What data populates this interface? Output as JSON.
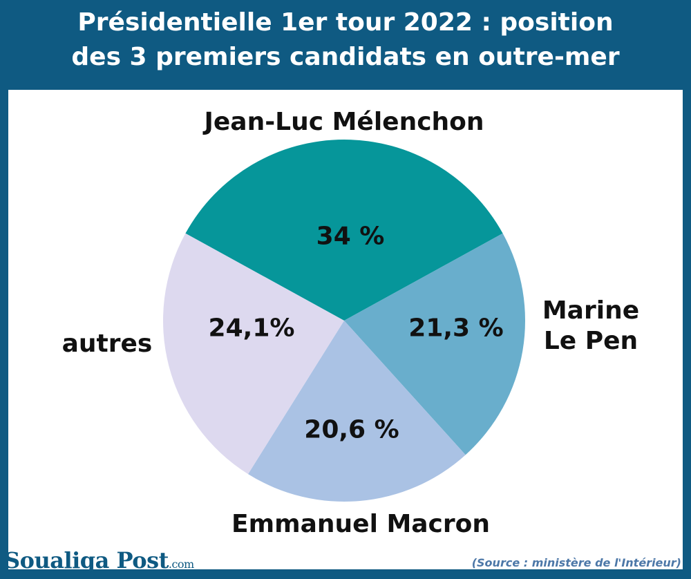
{
  "title_line1": "Présidentielle 1er tour 2022 : position",
  "title_line2": "des 3 premiers candidats en outre-mer",
  "brand": {
    "name": "Soualiga Post",
    "suffix": ".com"
  },
  "source": "(Source : ministère de l'Intérieur)",
  "chart_data": {
    "type": "pie",
    "title": "Présidentielle 1er tour 2022 : position des 3 premiers candidats en outre-mer",
    "slices": [
      {
        "label": "Jean-Luc Mélenchon",
        "value": 34,
        "display": "34 %",
        "color": "#06969a"
      },
      {
        "label": "Marine Le Pen",
        "value": 21.3,
        "display": "21,3 %",
        "color": "#69aecc"
      },
      {
        "label": "Emmanuel Macron",
        "value": 20.6,
        "display": "20,6 %",
        "color": "#aac2e4"
      },
      {
        "label": "autres",
        "value": 24.1,
        "display": "24,1%",
        "color": "#ddd9ef"
      }
    ]
  }
}
